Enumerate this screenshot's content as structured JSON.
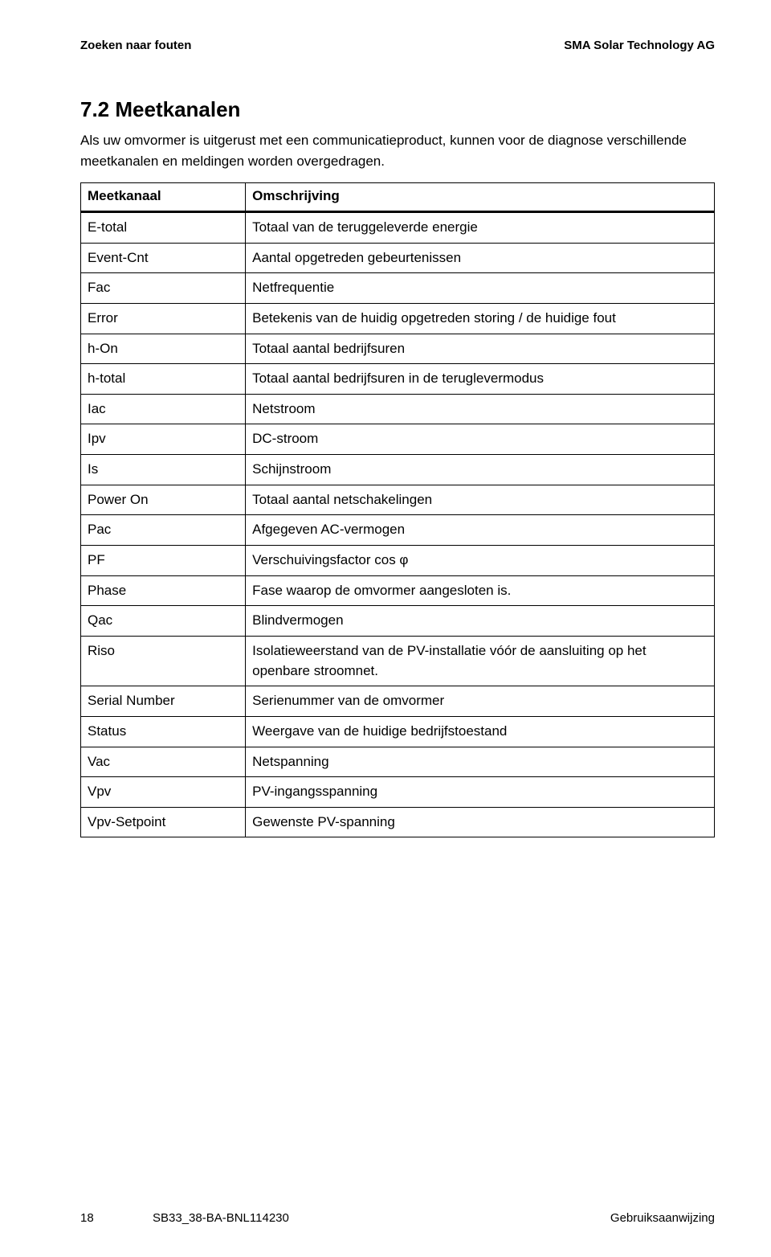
{
  "header": {
    "left": "Zoeken naar fouten",
    "right": "SMA Solar Technology AG"
  },
  "section": {
    "number_title": "7.2 Meetkanalen",
    "intro": "Als uw omvormer is uitgerust met een communicatieproduct, kunnen voor de diagnose verschillende meetkanalen en meldingen worden overgedragen."
  },
  "table": {
    "col1_header": "Meetkanaal",
    "col2_header": "Omschrijving",
    "rows": [
      {
        "k": "E-total",
        "v": "Totaal van de teruggeleverde energie"
      },
      {
        "k": "Event-Cnt",
        "v": "Aantal opgetreden gebeurtenissen"
      },
      {
        "k": "Fac",
        "v": "Netfrequentie"
      },
      {
        "k": "Error",
        "v": "Betekenis van de huidig opgetreden storing / de huidige fout"
      },
      {
        "k": "h-On",
        "v": "Totaal aantal bedrijfsuren"
      },
      {
        "k": "h-total",
        "v": "Totaal aantal bedrijfsuren in de teruglevermodus"
      },
      {
        "k": "Iac",
        "v": "Netstroom"
      },
      {
        "k": "Ipv",
        "v": "DC-stroom"
      },
      {
        "k": "Is",
        "v": "Schijnstroom"
      },
      {
        "k": "Power On",
        "v": "Totaal aantal netschakelingen"
      },
      {
        "k": "Pac",
        "v": "Afgegeven AC-vermogen"
      },
      {
        "k": "PF",
        "v": "Verschuivingsfactor cos φ"
      },
      {
        "k": "Phase",
        "v": "Fase waarop de omvormer aangesloten is."
      },
      {
        "k": "Qac",
        "v": "Blindvermogen"
      },
      {
        "k": "Riso",
        "v": "Isolatieweerstand van de PV-installatie vóór de aansluiting op het openbare stroomnet."
      },
      {
        "k": "Serial Number",
        "v": "Serienummer van de omvormer"
      },
      {
        "k": "Status",
        "v": "Weergave van de huidige bedrijfstoestand"
      },
      {
        "k": "Vac",
        "v": "Netspanning"
      },
      {
        "k": "Vpv",
        "v": "PV-ingangsspanning"
      },
      {
        "k": "Vpv-Setpoint",
        "v": "Gewenste PV-spanning"
      }
    ]
  },
  "footer": {
    "page_number": "18",
    "doc_id": "SB33_38-BA-BNL114230",
    "doc_type": "Gebruiksaanwijzing"
  }
}
